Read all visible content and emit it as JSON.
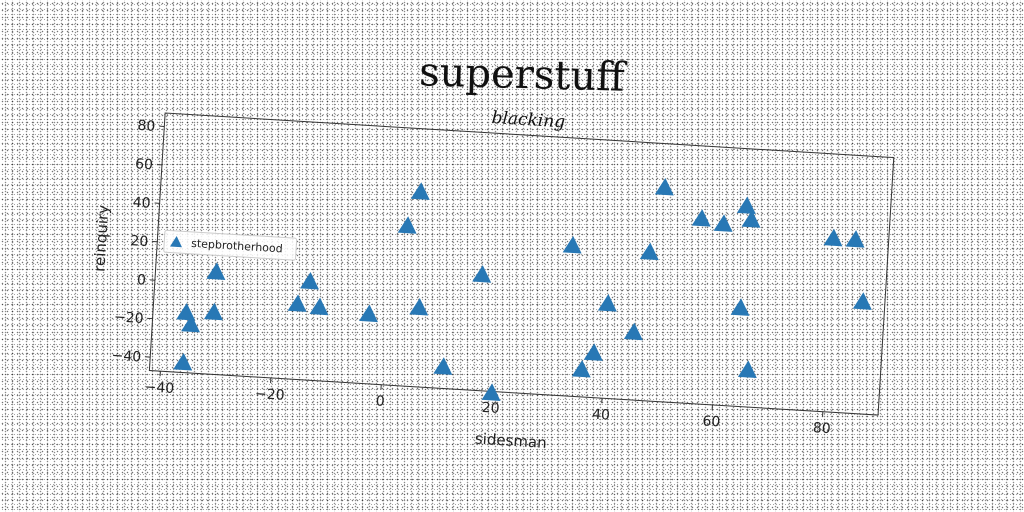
{
  "chart_data": {
    "type": "scatter",
    "title": "superstuff",
    "subtitle": "blacking",
    "xlabel": "sidesman",
    "ylabel": "reinquiry",
    "xlim": [
      -42,
      90
    ],
    "ylim": [
      -47,
      87
    ],
    "xticks": [
      -40,
      -20,
      0,
      20,
      40,
      60,
      80
    ],
    "yticks": [
      -40,
      -20,
      0,
      20,
      40,
      60,
      80
    ],
    "grid": false,
    "legend_position": "center-left",
    "series": [
      {
        "name": "stepbrotherhood",
        "color": "#2878b5",
        "marker": "triangle",
        "points": [
          [
            -36,
            -42
          ],
          [
            -36,
            -16
          ],
          [
            -35,
            -22
          ],
          [
            -31,
            6
          ],
          [
            -31,
            -15
          ],
          [
            -16,
            -8
          ],
          [
            -14,
            4
          ],
          [
            -12,
            -9
          ],
          [
            -3,
            -11
          ],
          [
            3,
            36
          ],
          [
            5,
            54
          ],
          [
            6,
            -6
          ],
          [
            11,
            -36
          ],
          [
            17,
            13
          ],
          [
            20,
            -48
          ],
          [
            33,
            31
          ],
          [
            36,
            -33
          ],
          [
            38,
            -24
          ],
          [
            40,
            2
          ],
          [
            45,
            -12
          ],
          [
            47,
            30
          ],
          [
            49,
            64
          ],
          [
            56,
            49
          ],
          [
            60,
            47
          ],
          [
            64,
            57
          ],
          [
            65,
            50
          ],
          [
            64,
            4
          ],
          [
            66,
            -28
          ],
          [
            80,
            43
          ],
          [
            84,
            43
          ],
          [
            86,
            11
          ]
        ]
      }
    ]
  }
}
